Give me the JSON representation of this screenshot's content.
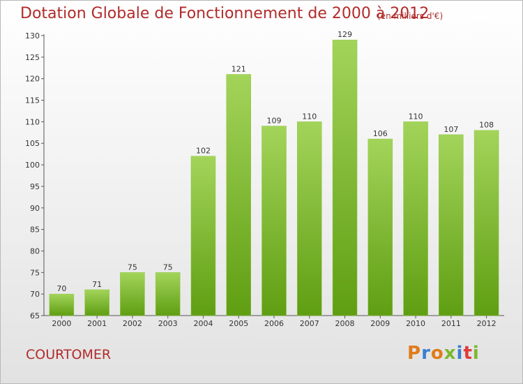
{
  "title": "Dotation Globale de Fonctionnement de 2000 à 2012",
  "subtitle": "(en milliers d'€)",
  "commune": "COURTOMER",
  "logo": {
    "letters": [
      "P",
      "r",
      "o",
      "x",
      "i",
      "t",
      "i"
    ],
    "colors": [
      "#e07b1a",
      "#3a7fd0",
      "#e07b1a",
      "#7bb82e",
      "#3a7fd0",
      "#e03a3a",
      "#7bb82e"
    ]
  },
  "colors": {
    "bar_top": "#a3d45a",
    "bar_bottom": "#5f9e12",
    "title": "#b22a2a"
  },
  "chart_data": {
    "type": "bar",
    "title": "Dotation Globale de Fonctionnement de 2000 à 2012",
    "subtitle": "(en milliers d'€)",
    "categories": [
      "2000",
      "2001",
      "2002",
      "2003",
      "2004",
      "2005",
      "2006",
      "2007",
      "2008",
      "2009",
      "2010",
      "2011",
      "2012"
    ],
    "values": [
      70,
      71,
      75,
      75,
      102,
      121,
      109,
      110,
      129,
      106,
      110,
      107,
      108
    ],
    "ylim": [
      65,
      130
    ],
    "yticks": [
      65,
      70,
      75,
      80,
      85,
      90,
      95,
      100,
      105,
      110,
      115,
      120,
      125,
      130
    ],
    "grid": false,
    "legend": "none"
  }
}
